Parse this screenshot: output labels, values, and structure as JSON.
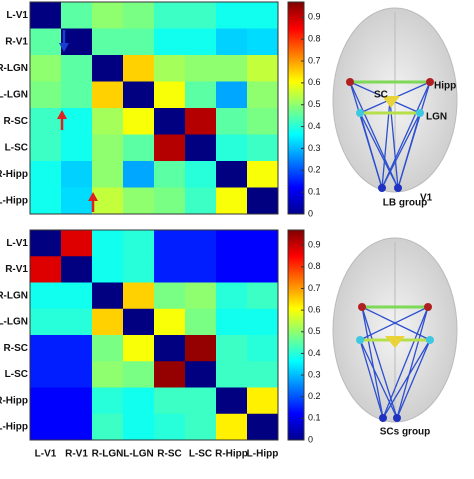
{
  "chart_data": [
    {
      "type": "heatmap",
      "colormap": "jet",
      "categories": [
        "L-V1",
        "R-V1",
        "R-LGN",
        "L-LGN",
        "R-SC",
        "L-SC",
        "R-Hipp",
        "L-Hipp"
      ],
      "values": [
        [
          0,
          0.45,
          0.5,
          0.48,
          0.42,
          0.42,
          0.38,
          0.38
        ],
        [
          0.45,
          0,
          0.45,
          0.45,
          0.38,
          0.38,
          0.32,
          0.33
        ],
        [
          0.5,
          0.45,
          0,
          0.65,
          0.52,
          0.5,
          0.5,
          0.55
        ],
        [
          0.48,
          0.45,
          0.65,
          0,
          0.6,
          0.45,
          0.28,
          0.5
        ],
        [
          0.42,
          0.38,
          0.52,
          0.6,
          0,
          0.92,
          0.45,
          0.48
        ],
        [
          0.42,
          0.38,
          0.5,
          0.45,
          0.92,
          0,
          0.4,
          0.42
        ],
        [
          0.38,
          0.32,
          0.5,
          0.28,
          0.45,
          0.4,
          0,
          0.6
        ],
        [
          0.38,
          0.33,
          0.55,
          0.5,
          0.48,
          0.42,
          0.6,
          0
        ]
      ],
      "clim": [
        0,
        0.97
      ],
      "cticks": [
        0,
        0.1,
        0.2,
        0.3,
        0.4,
        0.5,
        0.6,
        0.7,
        0.8,
        0.9
      ],
      "annotations": [
        "Hipp",
        "SC",
        "LGN",
        "V1"
      ],
      "caption": "LB group"
    },
    {
      "type": "heatmap",
      "colormap": "jet",
      "categories": [
        "L-V1",
        "R-V1",
        "R-LGN",
        "L-LGN",
        "R-SC",
        "L-SC",
        "R-Hipp",
        "L-Hipp"
      ],
      "values": [
        [
          0,
          0.88,
          0.38,
          0.4,
          0.15,
          0.15,
          0.12,
          0.12
        ],
        [
          0.88,
          0,
          0.38,
          0.4,
          0.15,
          0.15,
          0.12,
          0.12
        ],
        [
          0.38,
          0.38,
          0,
          0.65,
          0.48,
          0.5,
          0.4,
          0.42
        ],
        [
          0.4,
          0.4,
          0.65,
          0,
          0.6,
          0.48,
          0.38,
          0.38
        ],
        [
          0.15,
          0.15,
          0.48,
          0.6,
          0,
          0.95,
          0.42,
          0.4
        ],
        [
          0.15,
          0.15,
          0.5,
          0.48,
          0.95,
          0,
          0.42,
          0.42
        ],
        [
          0.12,
          0.12,
          0.4,
          0.38,
          0.42,
          0.42,
          0,
          0.62
        ],
        [
          0.12,
          0.12,
          0.42,
          0.38,
          0.4,
          0.42,
          0.62,
          0
        ]
      ],
      "clim": [
        0,
        0.97
      ],
      "cticks": [
        0,
        0.1,
        0.2,
        0.3,
        0.4,
        0.5,
        0.6,
        0.7,
        0.8,
        0.9
      ],
      "caption": "SCs group"
    }
  ]
}
